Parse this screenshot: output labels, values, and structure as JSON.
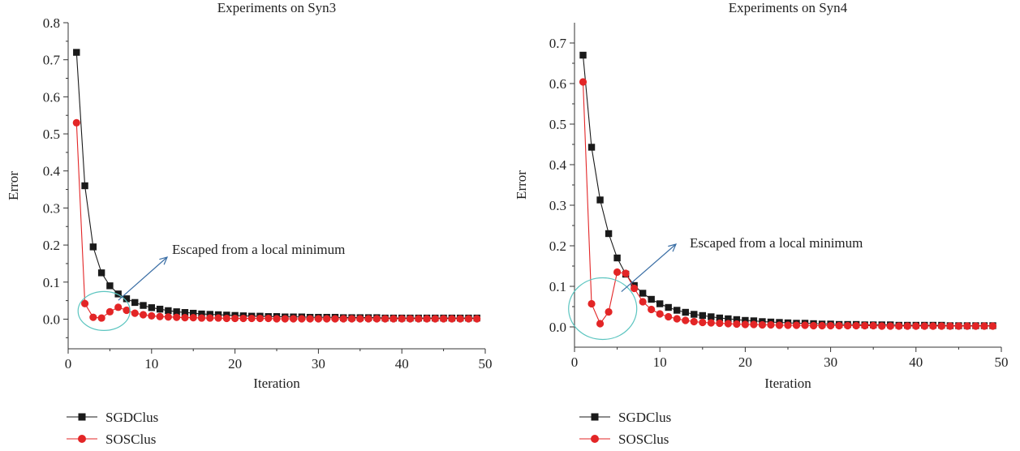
{
  "chart_data": [
    {
      "type": "line",
      "title": "Experiments on Syn3",
      "xlabel": "Iteration",
      "ylabel": "Error",
      "xlim": [
        0,
        50
      ],
      "ylim": [
        -0.08,
        0.8
      ],
      "xticks": [
        0,
        10,
        20,
        30,
        40,
        50
      ],
      "yticks": [
        0.0,
        0.1,
        0.2,
        0.3,
        0.4,
        0.5,
        0.6,
        0.7,
        0.8
      ],
      "xtick_labels": [
        "0",
        "10",
        "20",
        "30",
        "40",
        "50"
      ],
      "ytick_labels": [
        "0.0",
        "0.1",
        "0.2",
        "0.3",
        "0.4",
        "0.5",
        "0.6",
        "0.7",
        "0.8"
      ],
      "grid": false,
      "legend_position": "bottom-left",
      "annotation": {
        "text": "Escaped from a local minimum",
        "x": 4.3,
        "y": 0.022
      },
      "series": [
        {
          "name": "SGDClus",
          "marker": "square",
          "color": "#1a1a1a",
          "x": [
            1,
            2,
            3,
            4,
            5,
            6,
            7,
            8,
            9,
            10,
            11,
            12,
            13,
            14,
            15,
            16,
            17,
            18,
            19,
            20,
            21,
            22,
            23,
            24,
            25,
            26,
            27,
            28,
            29,
            30,
            31,
            32,
            33,
            34,
            35,
            36,
            37,
            38,
            39,
            40,
            41,
            42,
            43,
            44,
            45,
            46,
            47,
            48,
            49
          ],
          "y": [
            0.72,
            0.36,
            0.195,
            0.125,
            0.09,
            0.068,
            0.055,
            0.045,
            0.037,
            0.031,
            0.027,
            0.023,
            0.02,
            0.018,
            0.016,
            0.014,
            0.013,
            0.012,
            0.011,
            0.01,
            0.009,
            0.008,
            0.008,
            0.007,
            0.007,
            0.006,
            0.006,
            0.006,
            0.005,
            0.005,
            0.005,
            0.005,
            0.004,
            0.004,
            0.004,
            0.004,
            0.004,
            0.003,
            0.003,
            0.003,
            0.003,
            0.003,
            0.003,
            0.003,
            0.003,
            0.003,
            0.003,
            0.003,
            0.003
          ]
        },
        {
          "name": "SOSClus",
          "marker": "circle",
          "color": "#e32526",
          "x": [
            1,
            2,
            3,
            4,
            5,
            6,
            7,
            8,
            9,
            10,
            11,
            12,
            13,
            14,
            15,
            16,
            17,
            18,
            19,
            20,
            21,
            22,
            23,
            24,
            25,
            26,
            27,
            28,
            29,
            30,
            31,
            32,
            33,
            34,
            35,
            36,
            37,
            38,
            39,
            40,
            41,
            42,
            43,
            44,
            45,
            46,
            47,
            48,
            49
          ],
          "y": [
            0.53,
            0.042,
            0.005,
            0.003,
            0.02,
            0.032,
            0.024,
            0.016,
            0.012,
            0.009,
            0.007,
            0.006,
            0.005,
            0.004,
            0.004,
            0.003,
            0.003,
            0.003,
            0.002,
            0.002,
            0.002,
            0.002,
            0.002,
            0.002,
            0.001,
            0.001,
            0.001,
            0.001,
            0.001,
            0.001,
            0.001,
            0.001,
            0.001,
            0.001,
            0.001,
            0.001,
            0.001,
            0.001,
            0.001,
            0.001,
            0.001,
            0.001,
            0.001,
            0.001,
            0.001,
            0.001,
            0.001,
            0.001,
            0.001
          ]
        }
      ]
    },
    {
      "type": "line",
      "title": "Experiments on Syn4",
      "xlabel": "Iteration",
      "ylabel": "Error",
      "xlim": [
        0,
        50
      ],
      "ylim": [
        -0.05,
        0.75
      ],
      "xticks": [
        0,
        10,
        20,
        30,
        40,
        50
      ],
      "yticks": [
        0.0,
        0.1,
        0.2,
        0.3,
        0.4,
        0.5,
        0.6,
        0.7
      ],
      "xtick_labels": [
        "0",
        "10",
        "20",
        "30",
        "40",
        "50"
      ],
      "ytick_labels": [
        "0.0",
        "0.1",
        "0.2",
        "0.3",
        "0.4",
        "0.5",
        "0.6",
        "0.7"
      ],
      "grid": false,
      "legend_position": "bottom-left",
      "annotation": {
        "text": "Escaped from a local minimum",
        "x": 3.3,
        "y": 0.045
      },
      "series": [
        {
          "name": "SGDClus",
          "marker": "square",
          "color": "#1a1a1a",
          "x": [
            1,
            2,
            3,
            4,
            5,
            6,
            7,
            8,
            9,
            10,
            11,
            12,
            13,
            14,
            15,
            16,
            17,
            18,
            19,
            20,
            21,
            22,
            23,
            24,
            25,
            26,
            27,
            28,
            29,
            30,
            31,
            32,
            33,
            34,
            35,
            36,
            37,
            38,
            39,
            40,
            41,
            42,
            43,
            44,
            45,
            46,
            47,
            48,
            49
          ],
          "y": [
            0.67,
            0.443,
            0.313,
            0.23,
            0.17,
            0.13,
            0.102,
            0.083,
            0.068,
            0.057,
            0.048,
            0.041,
            0.036,
            0.031,
            0.028,
            0.025,
            0.022,
            0.02,
            0.018,
            0.016,
            0.015,
            0.013,
            0.012,
            0.011,
            0.01,
            0.009,
            0.009,
            0.008,
            0.007,
            0.007,
            0.006,
            0.006,
            0.006,
            0.005,
            0.005,
            0.005,
            0.005,
            0.004,
            0.004,
            0.004,
            0.004,
            0.004,
            0.004,
            0.003,
            0.003,
            0.003,
            0.003,
            0.003,
            0.003
          ]
        },
        {
          "name": "SOSClus",
          "marker": "circle",
          "color": "#e32526",
          "x": [
            1,
            2,
            3,
            4,
            5,
            6,
            7,
            8,
            9,
            10,
            11,
            12,
            13,
            14,
            15,
            16,
            17,
            18,
            19,
            20,
            21,
            22,
            23,
            24,
            25,
            26,
            27,
            28,
            29,
            30,
            31,
            32,
            33,
            34,
            35,
            36,
            37,
            38,
            39,
            40,
            41,
            42,
            43,
            44,
            45,
            46,
            47,
            48,
            49
          ],
          "y": [
            0.604,
            0.057,
            0.008,
            0.037,
            0.135,
            0.132,
            0.095,
            0.062,
            0.043,
            0.032,
            0.025,
            0.02,
            0.016,
            0.013,
            0.011,
            0.01,
            0.009,
            0.008,
            0.007,
            0.006,
            0.006,
            0.005,
            0.005,
            0.004,
            0.004,
            0.004,
            0.004,
            0.003,
            0.003,
            0.003,
            0.003,
            0.003,
            0.003,
            0.003,
            0.003,
            0.002,
            0.002,
            0.002,
            0.002,
            0.002,
            0.002,
            0.002,
            0.002,
            0.002,
            0.002,
            0.002,
            0.002,
            0.002,
            0.002
          ]
        }
      ]
    }
  ]
}
